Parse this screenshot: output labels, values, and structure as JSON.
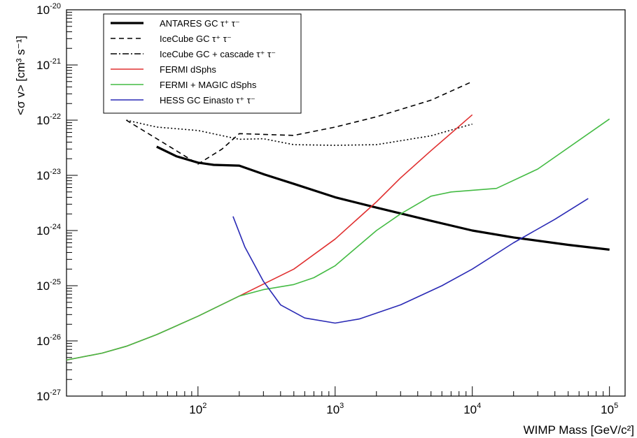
{
  "chart_data": {
    "type": "line",
    "xlabel": "WIMP Mass [GeV/c²]",
    "ylabel": "<σ v> [cm³ s⁻¹]",
    "x_scale": "log",
    "y_scale": "log",
    "xlim": [
      11,
      130000
    ],
    "ylim": [
      1e-27,
      1e-20
    ],
    "x_ticks": [
      {
        "value": 100,
        "label": "10",
        "exp": "2"
      },
      {
        "value": 1000,
        "label": "10",
        "exp": "3"
      },
      {
        "value": 10000,
        "label": "10",
        "exp": "4"
      },
      {
        "value": 100000,
        "label": "10",
        "exp": "5"
      }
    ],
    "y_ticks": [
      {
        "value": 1e-20,
        "label": "10",
        "exp": "-20"
      },
      {
        "value": 1e-21,
        "label": "10",
        "exp": "-21"
      },
      {
        "value": 1e-22,
        "label": "10",
        "exp": "-22"
      },
      {
        "value": 1e-23,
        "label": "10",
        "exp": "-23"
      },
      {
        "value": 1e-24,
        "label": "10",
        "exp": "-24"
      },
      {
        "value": 1e-25,
        "label": "10",
        "exp": "-25"
      },
      {
        "value": 1e-26,
        "label": "10",
        "exp": "-26"
      },
      {
        "value": 1e-27,
        "label": "10",
        "exp": "-27"
      }
    ],
    "legend_position": "top-left",
    "series": [
      {
        "name": "ANTARES GC τ⁺ τ⁻",
        "color": "#000000",
        "style": "solid",
        "width": 3.2,
        "x": [
          50,
          70,
          100,
          130,
          200,
          300,
          500,
          1000,
          2000,
          5000,
          10000,
          20000,
          50000,
          100000
        ],
        "y": [
          3.3e-23,
          2.2e-23,
          1.7e-23,
          1.55e-23,
          1.5e-23,
          1.05e-23,
          7e-24,
          4e-24,
          2.6e-24,
          1.5e-24,
          1e-24,
          7.5e-25,
          5.5e-25,
          4.5e-25
        ]
      },
      {
        "name": "IceCube GC τ⁺ τ⁻",
        "color": "#000000",
        "style": "dashed",
        "width": 1.6,
        "x": [
          30,
          60,
          100,
          150,
          200,
          500,
          1000,
          2000,
          5000,
          10000
        ],
        "y": [
          1e-22,
          3.5e-23,
          1.6e-23,
          3e-23,
          5.7e-23,
          5.3e-23,
          7.5e-23,
          1.15e-22,
          2.3e-22,
          5e-22
        ]
      },
      {
        "name": "IceCube GC + cascade τ⁺ τ⁻",
        "color": "#000000",
        "style": "dotted",
        "width": 1.6,
        "x": [
          30,
          50,
          100,
          200,
          300,
          500,
          1000,
          2000,
          5000,
          10000
        ],
        "y": [
          1e-22,
          7.5e-23,
          6.5e-23,
          4.5e-23,
          4.6e-23,
          3.6e-23,
          3.5e-23,
          3.6e-23,
          5.2e-23,
          8.5e-23
        ]
      },
      {
        "name": "FERMI dSphs",
        "color": "#e03030",
        "style": "solid",
        "width": 1.6,
        "x": [
          11,
          20,
          30,
          50,
          100,
          200,
          500,
          1000,
          2000,
          3000,
          5000,
          10000
        ],
        "y": [
          4.5e-27,
          6e-27,
          8e-27,
          1.3e-26,
          2.8e-26,
          6.5e-26,
          2e-25,
          7e-25,
          3.3e-24,
          9e-24,
          2.8e-23,
          1.25e-22
        ]
      },
      {
        "name": "FERMI + MAGIC dSphs",
        "color": "#44bb44",
        "style": "solid",
        "width": 1.6,
        "x": [
          11,
          20,
          30,
          50,
          100,
          200,
          300,
          500,
          700,
          1000,
          2000,
          3000,
          5000,
          7000,
          15000,
          30000,
          100000
        ],
        "y": [
          4.5e-27,
          6e-27,
          8e-27,
          1.3e-26,
          2.8e-26,
          6.5e-26,
          8.5e-26,
          1.05e-25,
          1.4e-25,
          2.3e-25,
          1e-24,
          2e-24,
          4.2e-24,
          5e-24,
          5.8e-24,
          1.3e-23,
          1.05e-22
        ]
      },
      {
        "name": "HESS GC Einasto τ⁺ τ⁻",
        "color": "#2a2ab5",
        "style": "solid",
        "width": 1.6,
        "x": [
          180,
          220,
          300,
          400,
          600,
          1000,
          1500,
          3000,
          6000,
          10000,
          20000,
          40000,
          70000
        ],
        "y": [
          1.8e-24,
          5e-25,
          1.2e-25,
          4.5e-26,
          2.6e-26,
          2.1e-26,
          2.5e-26,
          4.5e-26,
          1e-25,
          2e-25,
          6e-25,
          1.6e-24,
          3.8e-24
        ]
      }
    ]
  }
}
